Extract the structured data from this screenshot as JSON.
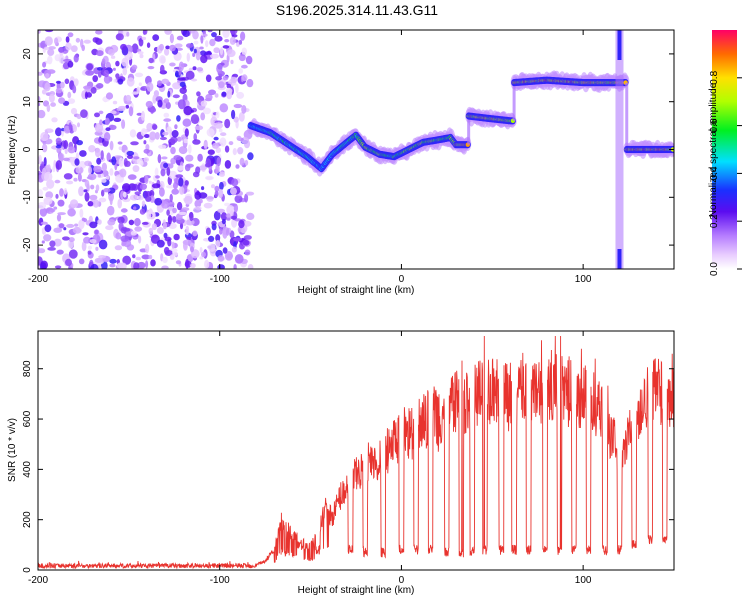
{
  "page_title": "S196.2025.314.11.43.G11",
  "chart_data": [
    {
      "type": "heatmap",
      "title": "S196.2025.314.11.43.G11",
      "xlabel": "Height of straight line (km)",
      "ylabel": "Frequency (Hz)",
      "xlim": [
        -200,
        150
      ],
      "ylim": [
        -25,
        25
      ],
      "x_ticks": [
        -200,
        -100,
        0,
        100
      ],
      "x_tick_labels": [
        "-200",
        "-100",
        "0",
        "100"
      ],
      "y_ticks": [
        -20,
        -10,
        0,
        10,
        20
      ],
      "y_tick_labels": [
        "-20",
        "-10",
        "0",
        "10",
        "20"
      ],
      "noise_region": [
        -200,
        -83
      ],
      "ridge": [
        {
          "x": -83,
          "y": 5.0,
          "amp": 0.5
        },
        {
          "x": -72,
          "y": 3.5,
          "amp": 0.55
        },
        {
          "x": -62,
          "y": 1.0,
          "amp": 0.6
        },
        {
          "x": -52,
          "y": -1.5,
          "amp": 0.55
        },
        {
          "x": -44,
          "y": -4.0,
          "amp": 0.45
        },
        {
          "x": -38,
          "y": -1.0,
          "amp": 0.5
        },
        {
          "x": -30,
          "y": 1.5,
          "amp": 0.6
        },
        {
          "x": -25,
          "y": 3.0,
          "amp": 0.65
        },
        {
          "x": -20,
          "y": 0.5,
          "amp": 0.75
        },
        {
          "x": -12,
          "y": -1.0,
          "amp": 0.7
        },
        {
          "x": -4,
          "y": -1.5,
          "amp": 0.65
        },
        {
          "x": 4,
          "y": 0.0,
          "amp": 0.7
        },
        {
          "x": 12,
          "y": 1.5,
          "amp": 0.75
        },
        {
          "x": 20,
          "y": 2.0,
          "amp": 0.7
        },
        {
          "x": 27,
          "y": 2.5,
          "amp": 0.7
        },
        {
          "x": 30,
          "y": 1.0,
          "amp": 0.9
        },
        {
          "x": 36,
          "y": 1.0,
          "amp": 0.9
        },
        {
          "x": 37,
          "y": 7.0,
          "amp": 0.85
        },
        {
          "x": 48,
          "y": 6.5,
          "amp": 0.9
        },
        {
          "x": 60,
          "y": 6.0,
          "amp": 0.8
        },
        {
          "x": 62,
          "y": 14.0,
          "amp": 0.9
        },
        {
          "x": 80,
          "y": 14.5,
          "amp": 0.92
        },
        {
          "x": 100,
          "y": 14.0,
          "amp": 0.92
        },
        {
          "x": 115,
          "y": 14.0,
          "amp": 0.85
        },
        {
          "x": 124,
          "y": 0.0,
          "amp": 0.95
        },
        {
          "x": 150,
          "y": 0.0,
          "amp": 0.9
        }
      ],
      "colorbar": {
        "label": "Normalized spectral amplitude",
        "range": [
          0,
          1
        ],
        "ticks": [
          0,
          0.2,
          0.4,
          0.6,
          0.8
        ],
        "tick_labels": [
          "0.0",
          "0.2",
          "0.4",
          "0.6",
          "0.8"
        ]
      }
    },
    {
      "type": "line",
      "xlabel": "Height of straight line (km)",
      "ylabel": "SNR (10 * v/v)",
      "xlim": [
        -200,
        150
      ],
      "ylim": [
        0,
        950
      ],
      "x_ticks": [
        -200,
        -100,
        0,
        100
      ],
      "x_tick_labels": [
        "-200",
        "-100",
        "0",
        "100"
      ],
      "y_ticks": [
        0,
        200,
        400,
        600,
        800
      ],
      "y_tick_labels": [
        "0",
        "200",
        "400",
        "600",
        "800"
      ],
      "series": [
        {
          "name": "SNR",
          "color": "#e8332e",
          "x": [
            -200,
            -180,
            -160,
            -140,
            -120,
            -100,
            -90,
            -80,
            -75,
            -70,
            -66,
            -62,
            -58,
            -54,
            -50,
            -46,
            -42,
            -38,
            -34,
            -30,
            -26,
            -22,
            -18,
            -14,
            -10,
            -6,
            -2,
            2,
            6,
            10,
            14,
            18,
            22,
            26,
            30,
            34,
            38,
            42,
            46,
            50,
            54,
            58,
            62,
            66,
            70,
            74,
            78,
            82,
            86,
            90,
            94,
            98,
            102,
            106,
            110,
            114,
            118,
            122,
            126,
            130,
            134,
            138,
            142,
            146,
            150
          ],
          "values": [
            20,
            20,
            22,
            20,
            20,
            20,
            22,
            25,
            40,
            90,
            220,
            180,
            150,
            120,
            110,
            180,
            280,
            240,
            330,
            380,
            420,
            450,
            500,
            480,
            520,
            560,
            600,
            640,
            620,
            660,
            680,
            700,
            650,
            720,
            760,
            740,
            780,
            800,
            840,
            820,
            820,
            780,
            800,
            820,
            840,
            800,
            820,
            840,
            860,
            800,
            820,
            780,
            800,
            760,
            700,
            650,
            560,
            580,
            640,
            700,
            780,
            800,
            820,
            790,
            760
          ],
          "dips": [
            -56,
            -46,
            -28,
            -20,
            -10,
            0,
            8,
            16,
            25,
            33,
            39,
            46,
            55,
            62,
            70,
            79,
            87,
            95,
            103,
            112,
            120,
            128,
            137,
            145
          ],
          "dip_floor": [
            80,
            60,
            60,
            50,
            50,
            60,
            60,
            60,
            50,
            50,
            50,
            60,
            60,
            60,
            60,
            60,
            60,
            60,
            60,
            60,
            60,
            80,
            100,
            100
          ]
        }
      ]
    }
  ]
}
